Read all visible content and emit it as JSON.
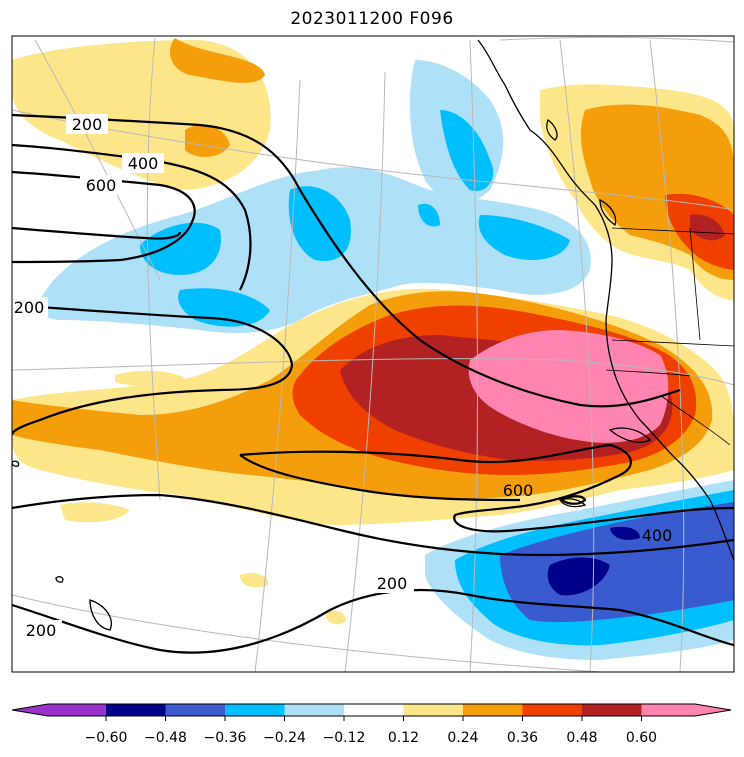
{
  "title": "2023011200 F096",
  "colorbar": {
    "colors": [
      "#9932cc",
      "#00008b",
      "#3a5bd0",
      "#00bfff",
      "#aee0f8",
      "#ffffff",
      "#fde68a",
      "#f59e0b",
      "#f04000",
      "#b22222",
      "#ff85b0"
    ],
    "tick_labels": [
      "−0.60",
      "−0.48",
      "−0.36",
      "−0.24",
      "−0.12",
      "0.12",
      "0.24",
      "0.36",
      "0.48",
      "0.60"
    ]
  },
  "contour_labels": {
    "c200_nw": "200",
    "c400_nw": "400",
    "c600_nw": "600",
    "c200_w": "200",
    "c600_se": "600",
    "c400_se": "400",
    "c200_s": "200",
    "c200_sw": "200"
  }
}
